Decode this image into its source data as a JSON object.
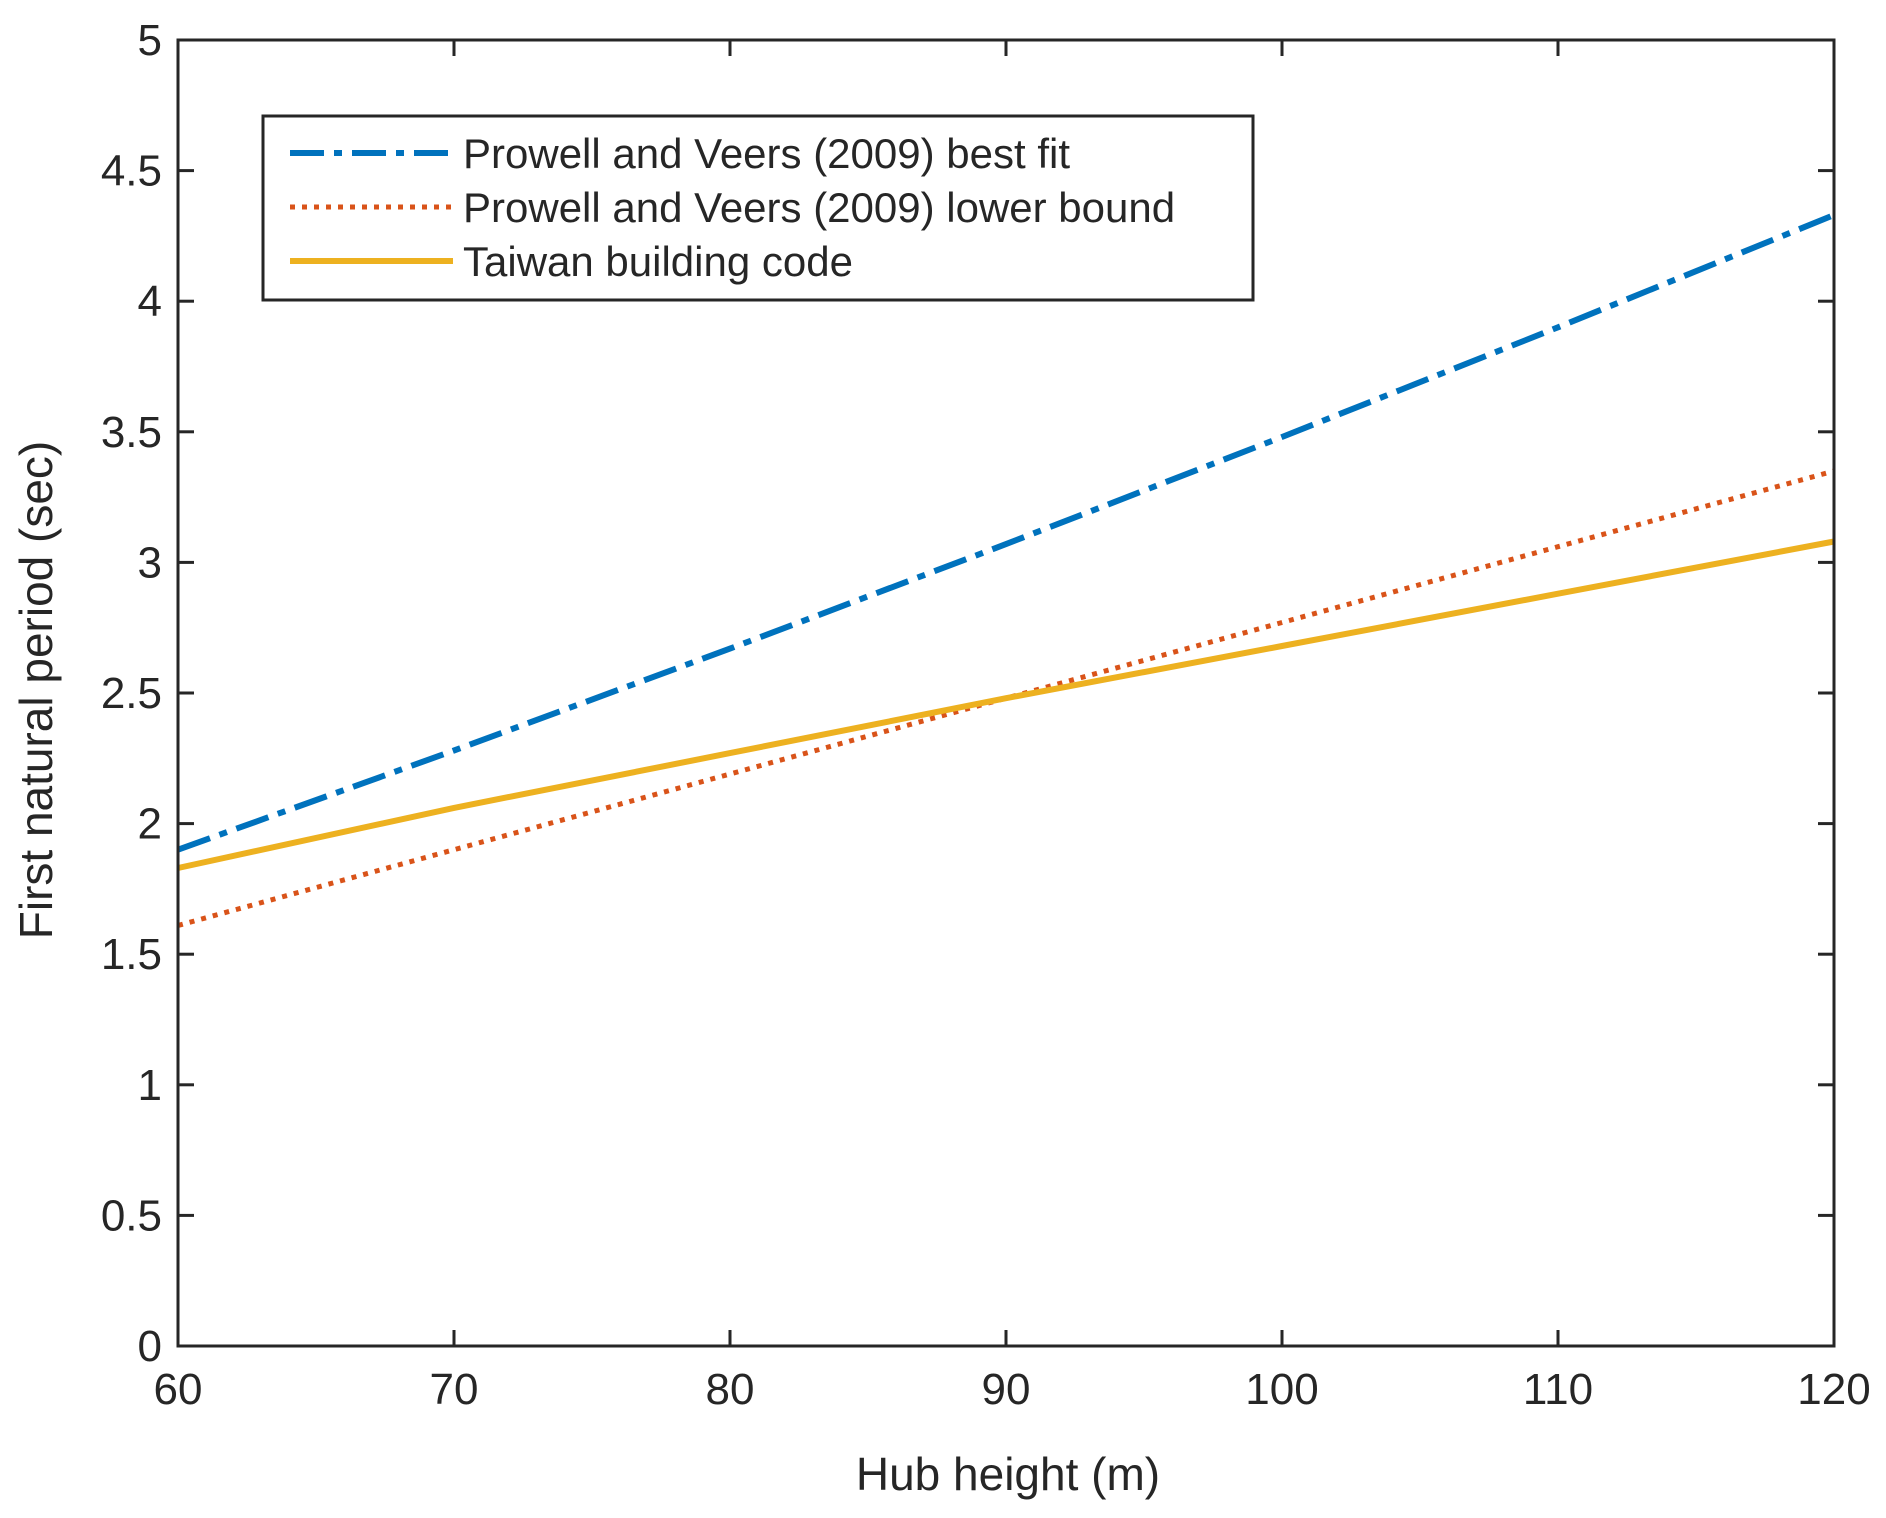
{
  "chart_data": {
    "type": "line",
    "title": "",
    "xlabel": "Hub height (m)",
    "ylabel": "First natural period (sec)",
    "xlim": [
      60,
      120
    ],
    "ylim": [
      0,
      5
    ],
    "xticks": [
      60,
      70,
      80,
      90,
      100,
      110,
      120
    ],
    "yticks": [
      0,
      0.5,
      1,
      1.5,
      2,
      2.5,
      3,
      3.5,
      4,
      4.5,
      5
    ],
    "xtick_labels": [
      "60",
      "70",
      "80",
      "90",
      "100",
      "110",
      "120"
    ],
    "ytick_labels": [
      "0",
      "0.5",
      "1",
      "1.5",
      "2",
      "2.5",
      "3",
      "3.5",
      "4",
      "4.5",
      "5"
    ],
    "grid": false,
    "legend_position": "top-left",
    "series": [
      {
        "name": "Prowell and Veers (2009) best fit",
        "style": "dash-dot",
        "color": "#0072BD",
        "x": [
          60,
          70,
          80,
          90,
          100,
          110,
          120
        ],
        "y": [
          1.9,
          2.28,
          2.67,
          3.07,
          3.48,
          3.9,
          4.33
        ]
      },
      {
        "name": "Prowell and Veers (2009) lower bound",
        "style": "dotted",
        "color": "#D95319",
        "x": [
          60,
          70,
          80,
          90,
          100,
          110,
          120
        ],
        "y": [
          1.61,
          1.9,
          2.19,
          2.48,
          2.77,
          3.06,
          3.35
        ]
      },
      {
        "name": "Taiwan building code",
        "style": "solid",
        "color": "#EDB120",
        "x": [
          60,
          70,
          80,
          90,
          100,
          110,
          120
        ],
        "y": [
          1.83,
          2.06,
          2.27,
          2.48,
          2.68,
          2.88,
          3.08
        ]
      }
    ]
  }
}
